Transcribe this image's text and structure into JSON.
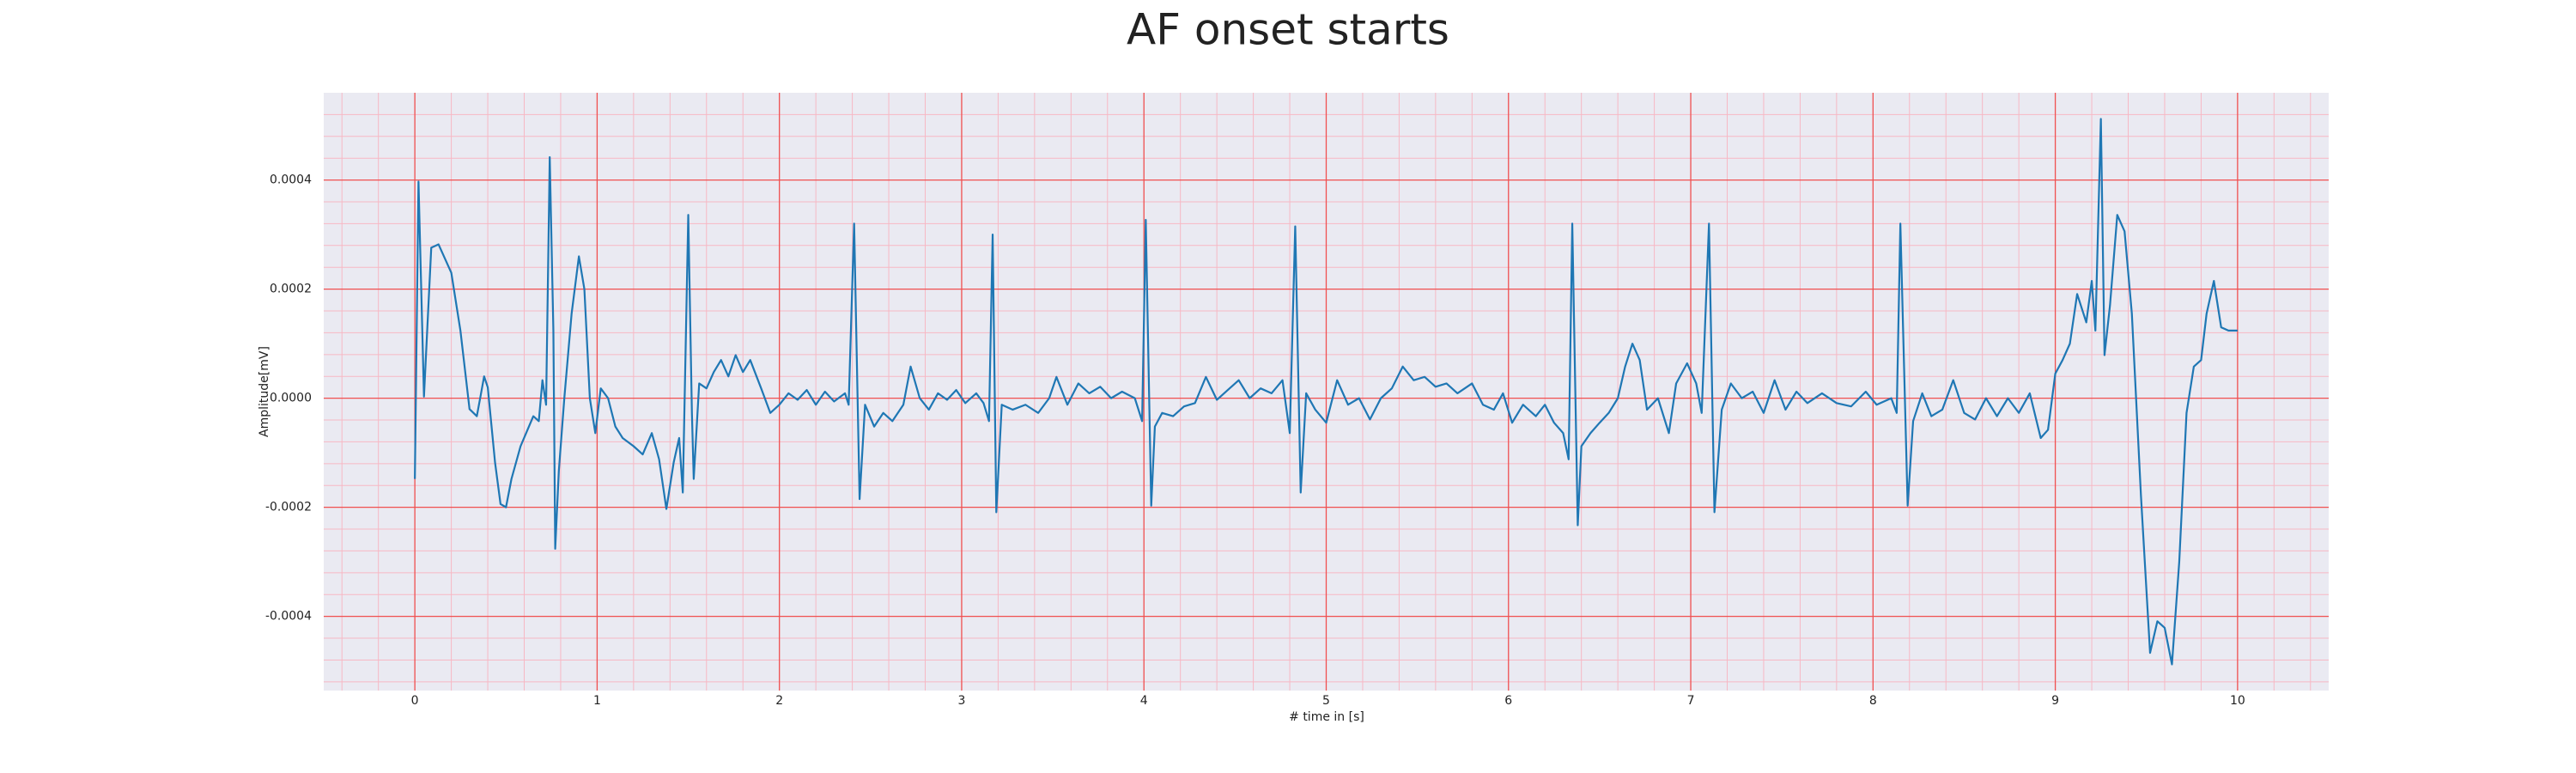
{
  "chart_data": {
    "type": "line",
    "title": "AF onset starts",
    "xlabel": "# time in [s]",
    "ylabel": "Amplitude[mV]",
    "color": "#1f77b4",
    "background": "#eaeaf2",
    "grid": true,
    "grid_color": "#f05050",
    "minor_grid_color": "#f7b8c4",
    "xlim": [
      -0.5,
      10.5
    ],
    "ylim": [
      -0.000536,
      0.00056
    ],
    "xticks": [
      0,
      1,
      2,
      3,
      4,
      5,
      6,
      7,
      8,
      9,
      10
    ],
    "yticks": [
      {
        "value": -0.0004,
        "label": "-0.0004"
      },
      {
        "value": -0.0002,
        "label": "-0.0002"
      },
      {
        "value": 0,
        "label": "0.0000"
      },
      {
        "value": 0.0002,
        "label": "0.0002"
      },
      {
        "value": 0.0004,
        "label": "0.0004"
      }
    ],
    "xminor_ticks": [
      -0.4,
      -0.2,
      0.2,
      0.4,
      0.6,
      0.8,
      1.2,
      1.4,
      1.6,
      1.8,
      2.2,
      2.4,
      2.6,
      2.8,
      3.2,
      3.4,
      3.6,
      3.8,
      4.2,
      4.4,
      4.6,
      4.8,
      5.2,
      5.4,
      5.6,
      5.8,
      6.2,
      6.4,
      6.6,
      6.8,
      7.2,
      7.4,
      7.6,
      7.8,
      8.2,
      8.4,
      8.6,
      8.8,
      9.2,
      9.4,
      9.6,
      9.8,
      10.2,
      10.4
    ],
    "yminor_ticks": [
      -0.00052,
      -0.00048,
      -0.00044,
      -0.00036,
      -0.00032,
      -0.00028,
      -0.00024,
      -0.00016,
      -0.00012,
      -8e-05,
      -4e-05,
      4e-05,
      8e-05,
      0.00012,
      0.00016,
      0.00024,
      0.00028,
      0.00032,
      0.00036,
      0.00044,
      0.00048,
      0.00052
    ],
    "x": [
      0,
      0.02,
      0.05,
      0.09,
      0.13,
      0.2,
      0.25,
      0.3,
      0.34,
      0.36,
      0.38,
      0.4,
      0.44,
      0.47,
      0.5,
      0.53,
      0.58,
      0.65,
      0.68,
      0.7,
      0.72,
      0.74,
      0.76,
      0.77,
      0.79,
      0.82,
      0.86,
      0.9,
      0.93,
      0.96,
      0.99,
      1.02,
      1.06,
      1.1,
      1.14,
      1.2,
      1.25,
      1.3,
      1.34,
      1.38,
      1.42,
      1.45,
      1.47,
      1.5,
      1.52,
      1.53,
      1.56,
      1.6,
      1.64,
      1.68,
      1.72,
      1.76,
      1.8,
      1.84,
      1.9,
      1.95,
      2.0,
      2.05,
      2.1,
      2.15,
      2.2,
      2.25,
      2.3,
      2.36,
      2.38,
      2.41,
      2.44,
      2.47,
      2.52,
      2.57,
      2.62,
      2.68,
      2.72,
      2.77,
      2.82,
      2.87,
      2.92,
      2.97,
      3.02,
      3.08,
      3.12,
      3.15,
      3.17,
      3.19,
      3.22,
      3.28,
      3.35,
      3.42,
      3.48,
      3.52,
      3.58,
      3.64,
      3.7,
      3.76,
      3.82,
      3.88,
      3.95,
      3.99,
      4.01,
      4.04,
      4.06,
      4.1,
      4.16,
      4.22,
      4.28,
      4.34,
      4.4,
      4.46,
      4.52,
      4.58,
      4.64,
      4.7,
      4.76,
      4.8,
      4.83,
      4.86,
      4.89,
      4.94,
      5.0,
      5.06,
      5.12,
      5.18,
      5.24,
      5.3,
      5.36,
      5.42,
      5.48,
      5.54,
      5.6,
      5.66,
      5.72,
      5.8,
      5.86,
      5.92,
      5.97,
      6.02,
      6.08,
      6.15,
      6.2,
      6.25,
      6.3,
      6.33,
      6.35,
      6.38,
      6.4,
      6.45,
      6.5,
      6.55,
      6.6,
      6.64,
      6.68,
      6.72,
      6.76,
      6.82,
      6.88,
      6.92,
      6.98,
      7.03,
      7.06,
      7.1,
      7.13,
      7.17,
      7.22,
      7.28,
      7.34,
      7.4,
      7.46,
      7.52,
      7.58,
      7.64,
      7.72,
      7.8,
      7.88,
      7.96,
      8.02,
      8.1,
      8.13,
      8.15,
      8.19,
      8.22,
      8.27,
      8.32,
      8.38,
      8.44,
      8.5,
      8.56,
      8.62,
      8.68,
      8.74,
      8.8,
      8.86,
      8.92,
      8.96,
      9.0,
      9.04,
      9.08,
      9.12,
      9.17,
      9.2,
      9.22,
      9.25,
      9.27,
      9.3,
      9.34,
      9.38,
      9.42,
      9.47,
      9.52,
      9.56,
      9.6,
      9.64,
      9.68,
      9.72,
      9.76,
      9.8,
      9.83,
      9.87,
      9.91,
      9.95,
      10.0
    ],
    "values": [
      -0.000148,
      0.000397,
      3e-06,
      0.000276,
      0.000282,
      0.00023,
      0.000124,
      -2e-05,
      -3.3e-05,
      3e-06,
      4e-05,
      2e-05,
      -0.000118,
      -0.000194,
      -0.0002,
      -0.000148,
      -8.8e-05,
      -3.3e-05,
      -4.2e-05,
      3.3e-05,
      -1.2e-05,
      0.000442,
      0.000124,
      -0.000276,
      -0.000133,
      0,
      0.000155,
      0.00026,
      0.0002,
      0,
      -6.4e-05,
      1.8e-05,
      0,
      -5.2e-05,
      -7.3e-05,
      -8.8e-05,
      -0.000103,
      -6.4e-05,
      -0.000112,
      -0.000203,
      -0.000118,
      -7.3e-05,
      -0.000173,
      0.000336,
      -2.7e-05,
      -0.000148,
      2.7e-05,
      1.8e-05,
      4.8e-05,
      7e-05,
      4e-05,
      7.9e-05,
      4.8e-05,
      7e-05,
      1.8e-05,
      -2.7e-05,
      -1.2e-05,
      9e-06,
      -3e-06,
      1.5e-05,
      -1.2e-05,
      1.2e-05,
      -6e-06,
      9e-06,
      -1.2e-05,
      0.00032,
      -0.000185,
      -1.2e-05,
      -5.2e-05,
      -2.7e-05,
      -4.2e-05,
      -1.2e-05,
      5.8e-05,
      0,
      -2.1e-05,
      9e-06,
      -3e-06,
      1.5e-05,
      -9e-06,
      9e-06,
      -9e-06,
      -4.2e-05,
      0.0003,
      -0.000209,
      -1.2e-05,
      -2.1e-05,
      -1.2e-05,
      -2.7e-05,
      0,
      3.9e-05,
      -1.2e-05,
      2.7e-05,
      9e-06,
      2.1e-05,
      0,
      1.2e-05,
      0,
      -4.2e-05,
      0.000327,
      -0.000197,
      -5.2e-05,
      -2.7e-05,
      -3.3e-05,
      -1.5e-05,
      -9e-06,
      3.9e-05,
      -3e-06,
      1.5e-05,
      3.3e-05,
      0,
      1.8e-05,
      9e-06,
      3.3e-05,
      -6.4e-05,
      0.000315,
      -0.000173,
      9e-06,
      -2.1e-05,
      -4.5e-05,
      3.3e-05,
      -1.2e-05,
      0,
      -3.9e-05,
      0,
      1.8e-05,
      5.8e-05,
      3.3e-05,
      3.9e-05,
      2.1e-05,
      2.7e-05,
      9e-06,
      2.7e-05,
      -1.2e-05,
      -2.1e-05,
      9e-06,
      -4.5e-05,
      -1.2e-05,
      -3.3e-05,
      -1.2e-05,
      -4.5e-05,
      -6.4e-05,
      -0.000112,
      0.00032,
      -0.000233,
      -8.8e-05,
      -6.4e-05,
      -4.5e-05,
      -2.7e-05,
      0,
      5.8e-05,
      0.0001,
      7e-05,
      -2.1e-05,
      0,
      -6.4e-05,
      2.7e-05,
      6.4e-05,
      2.7e-05,
      -2.7e-05,
      0.00032,
      -0.000209,
      -2.1e-05,
      2.7e-05,
      0,
      1.2e-05,
      -2.7e-05,
      3.3e-05,
      -2.1e-05,
      1.2e-05,
      -9e-06,
      9e-06,
      -9e-06,
      -1.5e-05,
      1.2e-05,
      -1.2e-05,
      0,
      -2.7e-05,
      0.00032,
      -0.000197,
      -4.2e-05,
      9e-06,
      -3.3e-05,
      -2.1e-05,
      3.3e-05,
      -2.7e-05,
      -3.9e-05,
      0,
      -3.3e-05,
      0,
      -2.7e-05,
      9e-06,
      -7.3e-05,
      -5.8e-05,
      4.5e-05,
      7e-05,
      0.0001,
      0.000191,
      0.000139,
      0.000215,
      0.000124,
      0.000512,
      7.9e-05,
      0.00017,
      0.000336,
      0.000306,
      0.000155,
      -0.000179,
      -0.000467,
      -0.000409,
      -0.000421,
      -0.000488,
      -0.0003,
      -2.7e-05,
      5.8e-05,
      7e-05,
      0.000155,
      0.000215,
      0.00013,
      0.000124,
      0.000124
    ]
  }
}
